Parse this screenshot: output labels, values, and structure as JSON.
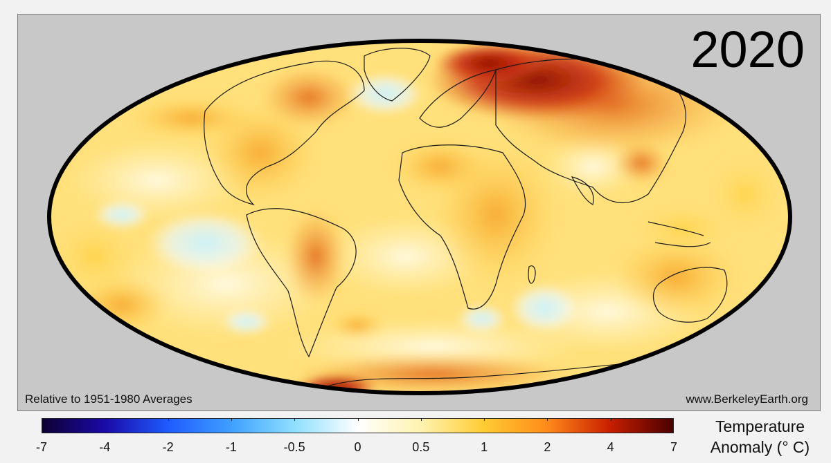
{
  "map": {
    "year": "2020",
    "baseline_note": "Relative to 1951-1980 Averages",
    "source": "www.BerkeleyEarth.org",
    "projection": "Mollweide (global)",
    "colors": {
      "frame_background": "#c8c8c8",
      "outline": "#000000",
      "coastline": "#1a1a1a"
    }
  },
  "legend": {
    "title_line1": "Temperature",
    "title_line2": "Anomaly (° C)",
    "tick_labels": [
      "-7",
      "-4",
      "-2",
      "-1",
      "-0.5",
      "0",
      "0.5",
      "1",
      "2",
      "4",
      "7"
    ],
    "stops": [
      {
        "value": "-7",
        "color": "#0e0033"
      },
      {
        "value": "-4",
        "color": "#1a0aa8"
      },
      {
        "value": "-2",
        "color": "#1f5cff"
      },
      {
        "value": "-1",
        "color": "#3fa0ff"
      },
      {
        "value": "-0.5",
        "color": "#8fe0ff"
      },
      {
        "value": "0",
        "color": "#ffffff"
      },
      {
        "value": "0.5",
        "color": "#fff3b0"
      },
      {
        "value": "1",
        "color": "#ffcc33"
      },
      {
        "value": "2",
        "color": "#ff8a1a"
      },
      {
        "value": "4",
        "color": "#c81e00"
      },
      {
        "value": "7",
        "color": "#4a0000"
      }
    ]
  }
}
